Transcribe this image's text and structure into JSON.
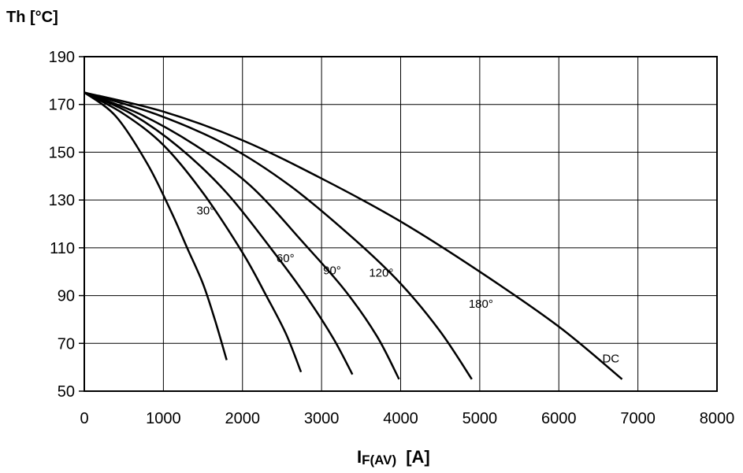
{
  "chart_data": {
    "type": "line",
    "ylabel": "Th  [°C]",
    "xlabel_main": "I",
    "xlabel_sub": "F(AV)",
    "xlabel_unit": "[A]",
    "xlim": [
      0,
      8000
    ],
    "ylim": [
      50,
      190
    ],
    "xticks": [
      "0",
      "1000",
      "2000",
      "3000",
      "4000",
      "5000",
      "6000",
      "7000",
      "8000"
    ],
    "yticks": [
      "50",
      "70",
      "90",
      "110",
      "130",
      "150",
      "170",
      "190"
    ],
    "grid": true,
    "series": [
      {
        "name": "30°",
        "x": [
          0,
          400,
          800,
          1100,
          1300,
          1500,
          1650,
          1800
        ],
        "y": [
          175,
          165,
          145,
          125,
          110,
          95,
          80,
          63
        ]
      },
      {
        "name": "60°",
        "x": [
          0,
          500,
          1000,
          1500,
          2000,
          2300,
          2550,
          2740
        ],
        "y": [
          175,
          166,
          153,
          133,
          108,
          90,
          74,
          58
        ]
      },
      {
        "name": "90°",
        "x": [
          0,
          600,
          1200,
          1800,
          2400,
          2800,
          3150,
          3390
        ],
        "y": [
          175,
          166,
          152,
          133,
          108,
          90,
          72,
          57
        ]
      },
      {
        "name": "120°",
        "x": [
          0,
          700,
          1400,
          2100,
          2800,
          3300,
          3700,
          3980
        ],
        "y": [
          175,
          166,
          153,
          136,
          111,
          92,
          73,
          55
        ]
      },
      {
        "name": "180°",
        "x": [
          0,
          900,
          1800,
          2600,
          3400,
          4000,
          4500,
          4900
        ],
        "y": [
          175,
          166,
          153,
          136,
          114,
          95,
          75,
          55
        ]
      },
      {
        "name": "DC",
        "x": [
          0,
          1000,
          2000,
          3000,
          4000,
          5000,
          6000,
          6800
        ],
        "y": [
          175,
          167,
          155,
          139,
          121,
          100,
          77,
          55
        ]
      }
    ],
    "label_positions": [
      {
        "text": "30°",
        "x": 1420,
        "y": 124
      },
      {
        "text": "60°",
        "x": 2430,
        "y": 104
      },
      {
        "text": "90°",
        "x": 3020,
        "y": 99
      },
      {
        "text": "120°",
        "x": 3600,
        "y": 98
      },
      {
        "text": "180°",
        "x": 4860,
        "y": 85
      },
      {
        "text": "DC",
        "x": 6550,
        "y": 62
      }
    ]
  }
}
